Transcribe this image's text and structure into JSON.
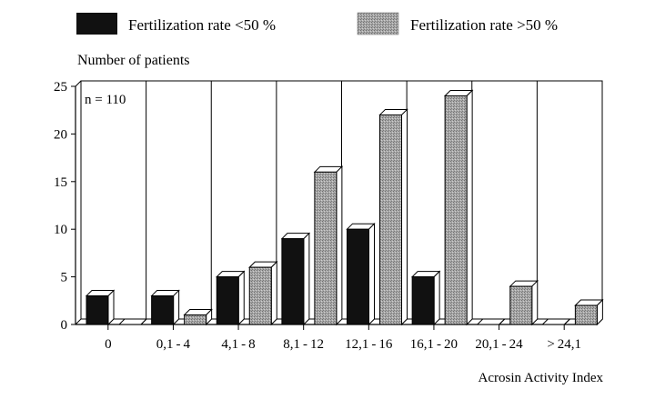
{
  "chart_data": {
    "type": "bar",
    "title": "",
    "ylabel": "Number of patients",
    "xlabel": "Acrosin Activity Index",
    "annotation": "n = 110",
    "ylim": [
      0,
      25
    ],
    "yticks": [
      0,
      5,
      10,
      15,
      20,
      25
    ],
    "categories": [
      "0",
      "0,1-4",
      "4,1-8",
      "8,1-12",
      "12,1-16",
      "16,1-20",
      "20,1-24",
      ">24,1"
    ],
    "series": [
      {
        "name": "Fertilization rate <50 %",
        "color": "#111111",
        "values": [
          3,
          3,
          5,
          9,
          10,
          5,
          0,
          0
        ]
      },
      {
        "name": "Fertilization rate >50 %",
        "color": "#9a9a9a",
        "values": [
          0,
          1,
          6,
          16,
          22,
          24,
          4,
          2
        ]
      }
    ],
    "legend_position": "top",
    "grid": "vertical category separators",
    "style": "3D bars"
  }
}
